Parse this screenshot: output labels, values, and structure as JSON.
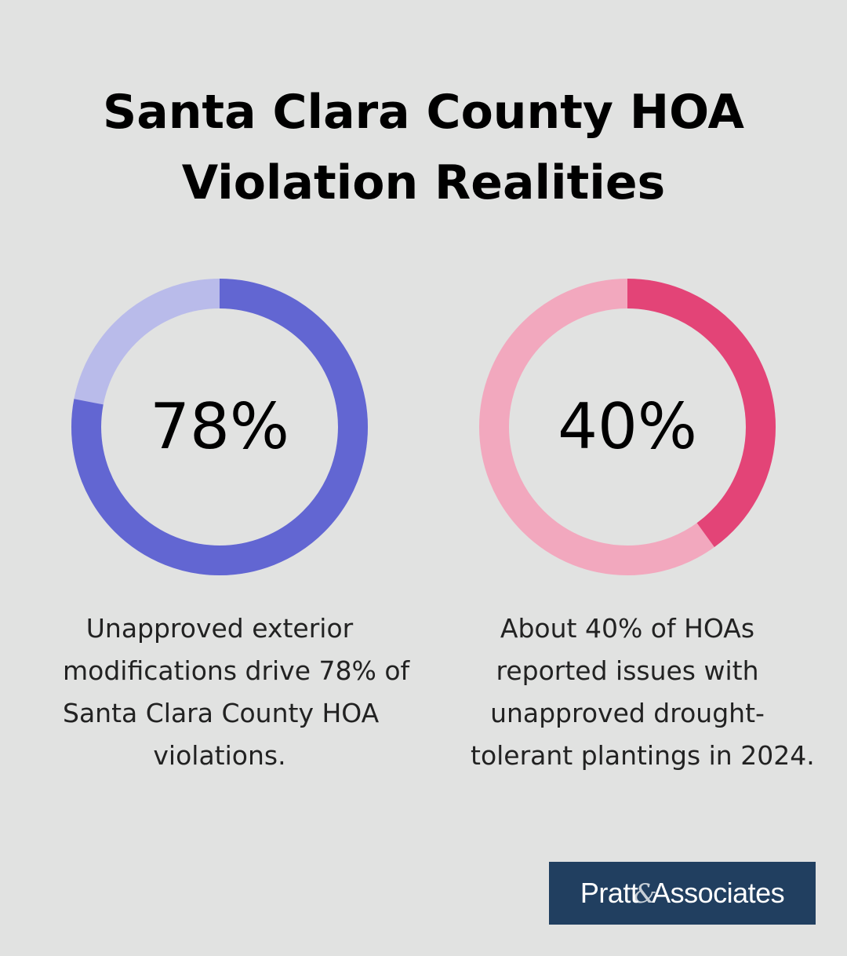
{
  "title": {
    "line1": "Santa Clara County HOA",
    "line2": "Violation Realities"
  },
  "chart_data": [
    {
      "type": "pie",
      "value": 78,
      "value_label": "78%",
      "max": 100,
      "colors": {
        "filled": "#6266d2",
        "remaining": "#b9bbea"
      },
      "caption_lines": [
        "Unapproved exterior",
        "modifications drive 78% of",
        "Santa Clara County HOA",
        "violations."
      ]
    },
    {
      "type": "pie",
      "value": 40,
      "value_label": "40%",
      "max": 100,
      "colors": {
        "filled": "#e34477",
        "remaining": "#f2a8be"
      },
      "caption_lines": [
        "About 40% of HOAs",
        "reported issues with",
        "unapproved drought-",
        "tolerant plantings in 2024."
      ]
    }
  ],
  "logo": {
    "left": "Pratt",
    "amp": "&",
    "right": "Associates",
    "background": "#213f60"
  }
}
